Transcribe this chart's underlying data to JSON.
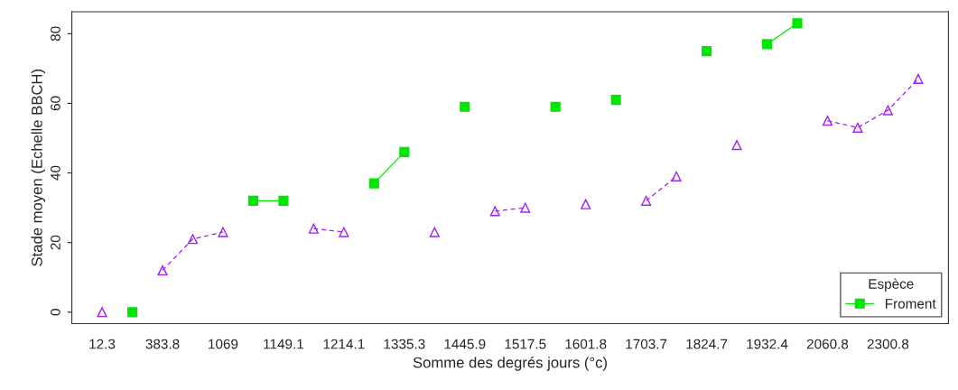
{
  "chart_data": {
    "type": "line",
    "xlabel": "Somme des degrés jours (°c)",
    "ylabel": "Stade moyen (Echelle BBCH)",
    "legend_title": "Espèce",
    "categories": [
      "12.3",
      null,
      "383.8",
      null,
      "1069",
      null,
      "1149.1",
      null,
      "1214.1",
      null,
      "1335.3",
      null,
      "1445.9",
      null,
      "1517.5",
      null,
      "1601.8",
      null,
      "1703.7",
      null,
      "1824.7",
      null,
      "1932.4",
      null,
      "2060.8",
      null,
      "2300.8",
      null
    ],
    "series": [
      {
        "name": "Froment",
        "color": "#00e600",
        "marker": "square",
        "line_style": "solid",
        "values": [
          null,
          0,
          null,
          null,
          null,
          32,
          32,
          null,
          null,
          37,
          46,
          null,
          59,
          null,
          null,
          59,
          null,
          61,
          null,
          null,
          75,
          null,
          77,
          83,
          null,
          null,
          null,
          null
        ]
      },
      {
        "color": "#a020f0",
        "marker": "triangle",
        "line_style": "dashed",
        "values": [
          0,
          null,
          12,
          21,
          23,
          null,
          null,
          24,
          23,
          null,
          null,
          23,
          null,
          29,
          30,
          null,
          31,
          null,
          32,
          39,
          null,
          48,
          null,
          null,
          55,
          53,
          58,
          67
        ]
      }
    ],
    "ylim": [
      -3.32,
      86.32
    ],
    "yticks": [
      0,
      20,
      40,
      60,
      80
    ],
    "grid": false,
    "legend": "bottom right"
  }
}
